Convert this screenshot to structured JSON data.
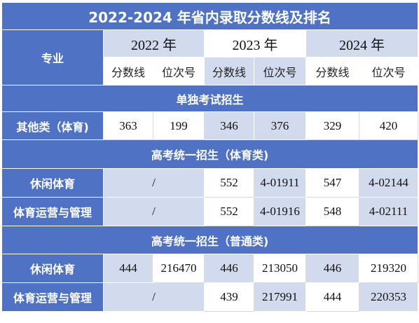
{
  "title": "2022-2024 年省内录取分数线及排名",
  "header": {
    "major_label": "专业",
    "years": [
      "2022 年",
      "2023 年",
      "2024 年"
    ],
    "sub_labels": [
      "分数线",
      "位次号",
      "分数线",
      "位次号",
      "分数线",
      "位次号"
    ]
  },
  "sections": [
    {
      "title": "单独考试招生",
      "rows": [
        {
          "name": "其他类（体育)",
          "c2022": "",
          "s2022": "363",
          "r2022": "199",
          "s2023": "346",
          "r2023": "376",
          "s2024": "329",
          "r2024": "420"
        }
      ]
    },
    {
      "title": "高考统一招生（体育类)",
      "rows": [
        {
          "name": "休闲体育",
          "c2022": "/",
          "s2023": "552",
          "r2023": "4-01911",
          "s2024": "547",
          "r2024": "4-02144"
        },
        {
          "name": "体育运营与管理",
          "c2022": "/",
          "s2023": "552",
          "r2023": "4-01916",
          "s2024": "548",
          "r2024": "4-02111"
        }
      ]
    },
    {
      "title": "高考统一招生（普通类)",
      "rows": [
        {
          "name": "休闲体育",
          "c2022": "",
          "s2022": "444",
          "r2022": "216470",
          "s2023": "446",
          "r2023": "213050",
          "s2024": "446",
          "r2024": "219320"
        },
        {
          "name": "体育运营与管理",
          "c2022": "/",
          "s2023": "439",
          "r2023": "217991",
          "s2024": "444",
          "r2024": "220353"
        }
      ]
    }
  ]
}
